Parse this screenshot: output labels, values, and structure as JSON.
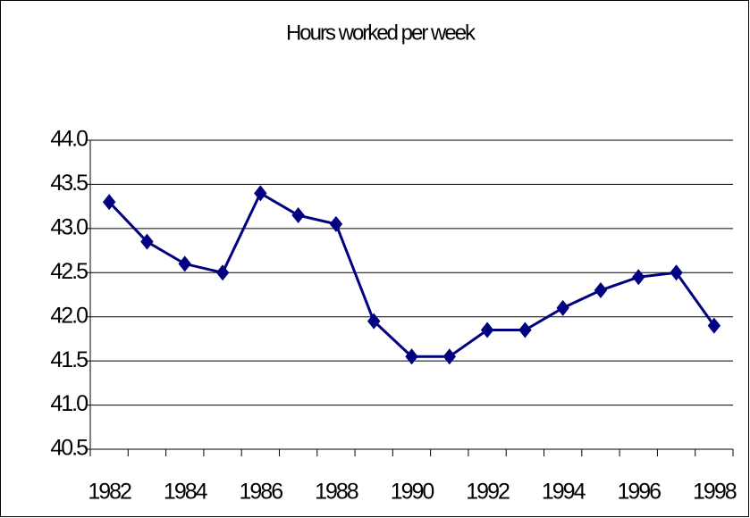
{
  "chart_data": {
    "type": "line",
    "title": "Hours worked per week",
    "categories": [
      "1982",
      null,
      "1984",
      null,
      "1986",
      null,
      "1988",
      null,
      "1990",
      null,
      "1992",
      null,
      "1994",
      null,
      "1996",
      null,
      "1998"
    ],
    "values": [
      43.3,
      42.85,
      42.6,
      42.5,
      43.4,
      43.15,
      43.05,
      41.95,
      41.55,
      41.55,
      41.85,
      41.85,
      42.1,
      42.3,
      42.45,
      42.5,
      41.9
    ],
    "color": "#000080",
    "ylim": [
      40.5,
      44.0
    ],
    "yticks": [
      {
        "value": 40.5,
        "label": "40.5"
      },
      {
        "value": 41.0,
        "label": "41.0"
      },
      {
        "value": 41.5,
        "label": "41.5"
      },
      {
        "value": 42.0,
        "label": "42.0"
      },
      {
        "value": 42.5,
        "label": "42.5"
      },
      {
        "value": 43.0,
        "label": "43.0"
      },
      {
        "value": 43.5,
        "label": "43.5"
      },
      {
        "value": 44.0,
        "label": "44.0"
      }
    ],
    "grid": true
  }
}
